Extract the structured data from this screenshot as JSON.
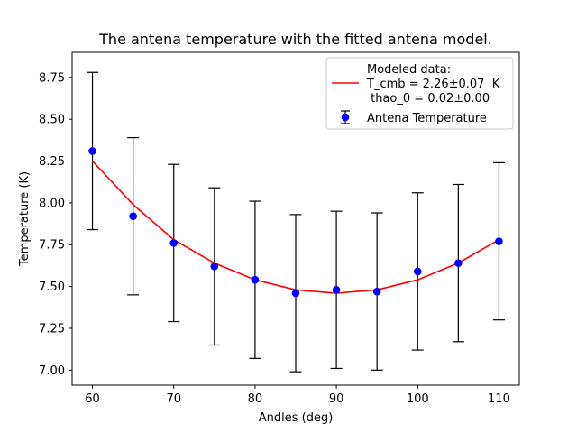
{
  "chart_data": {
    "type": "scatter",
    "title": "The antena temperature with the fitted antena model.",
    "xlabel": "Andles (deg)",
    "ylabel": "Temperature (K)",
    "xlim": [
      57.5,
      112.5
    ],
    "ylim": [
      6.91,
      8.9
    ],
    "xticks": [
      60,
      70,
      80,
      90,
      100,
      110
    ],
    "yticks": [
      7.0,
      7.25,
      7.5,
      7.75,
      8.0,
      8.25,
      8.5,
      8.75
    ],
    "ytick_labels": [
      "7.00",
      "7.25",
      "7.50",
      "7.75",
      "8.00",
      "8.25",
      "8.50",
      "8.75"
    ],
    "grid": false,
    "legend_position": "top-right",
    "series": [
      {
        "name": "Antena Temperature",
        "kind": "errorbar",
        "color": "#0000ff",
        "errcolor": "#000000",
        "x": [
          60,
          65,
          70,
          75,
          80,
          85,
          90,
          95,
          100,
          105,
          110
        ],
        "y": [
          8.31,
          7.92,
          7.76,
          7.62,
          7.54,
          7.46,
          7.48,
          7.47,
          7.59,
          7.64,
          7.77
        ],
        "yerr": [
          0.47,
          0.47,
          0.47,
          0.47,
          0.47,
          0.47,
          0.47,
          0.47,
          0.47,
          0.47,
          0.47
        ]
      },
      {
        "name": "Modeled data:\nT_cmb = 2.26±0.07  K\n thao_0 = 0.02±0.00",
        "name_lines": [
          "Modeled data:",
          "T_cmb = 2.26±0.07  K",
          " thao_0 = 0.02±0.00"
        ],
        "kind": "line",
        "color": "#ff0000",
        "x": [
          60,
          65,
          70,
          75,
          80,
          85,
          90,
          95,
          100,
          105,
          110
        ],
        "y": [
          8.25,
          7.99,
          7.78,
          7.64,
          7.54,
          7.48,
          7.46,
          7.48,
          7.54,
          7.64,
          7.78
        ]
      }
    ]
  }
}
